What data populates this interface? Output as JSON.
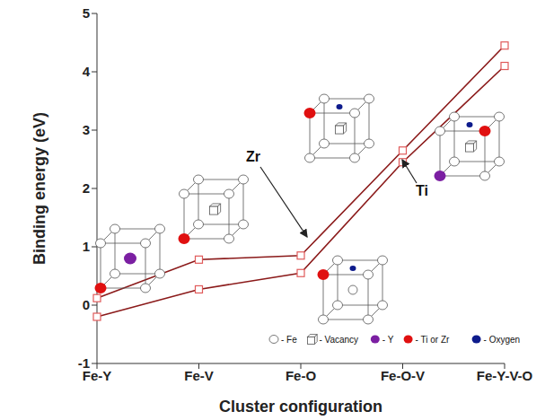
{
  "chart_data": {
    "type": "line",
    "xlabel": "Cluster configuration",
    "ylabel": "Binding energy (eV)",
    "categories": [
      "Fe-Y",
      "Fe-V",
      "Fe-O",
      "Fe-O-V",
      "Fe-Y-V-O"
    ],
    "series": [
      {
        "name": "Zr",
        "color": "#8b1a1a",
        "marker": "square",
        "values": [
          0.12,
          0.78,
          0.85,
          2.65,
          4.45
        ]
      },
      {
        "name": "Ti",
        "color": "#8b1a1a",
        "marker": "square",
        "values": [
          -0.2,
          0.27,
          0.55,
          2.45,
          4.1
        ]
      }
    ],
    "ylim": [
      -1,
      5
    ],
    "yticks": [
      -1,
      0,
      1,
      2,
      3,
      4,
      5
    ],
    "grid": false,
    "annotations": [
      "- Fe",
      "- Vacancy",
      "- Y",
      "- Ti or Zr",
      "- Oxygen"
    ]
  }
}
